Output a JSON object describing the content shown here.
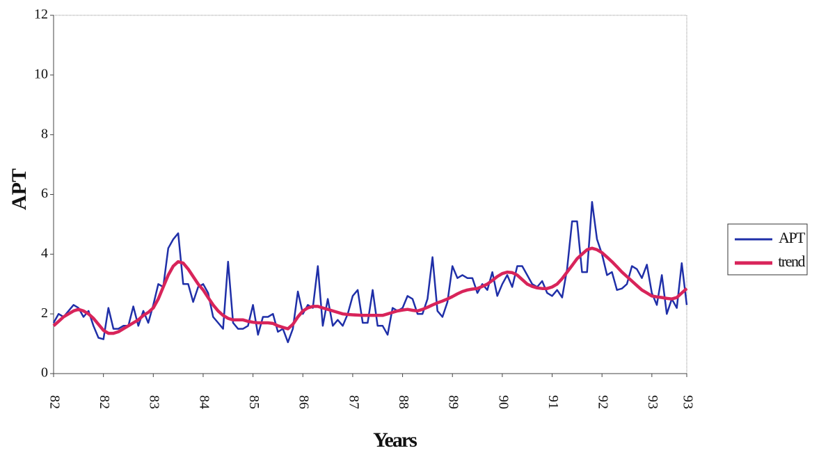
{
  "chart_data": {
    "type": "line",
    "x_label": "Years",
    "y_label": "APT",
    "categories": [
      "82",
      null,
      null,
      null,
      null,
      null,
      null,
      null,
      null,
      null,
      "82",
      null,
      null,
      null,
      null,
      null,
      null,
      null,
      null,
      null,
      "83",
      null,
      null,
      null,
      null,
      null,
      null,
      null,
      null,
      null,
      "84",
      null,
      null,
      null,
      null,
      null,
      null,
      null,
      null,
      null,
      "85",
      null,
      null,
      null,
      null,
      null,
      null,
      null,
      null,
      null,
      "86",
      null,
      null,
      null,
      null,
      null,
      null,
      null,
      null,
      null,
      "87",
      null,
      null,
      null,
      null,
      null,
      null,
      null,
      null,
      null,
      "88",
      null,
      null,
      null,
      null,
      null,
      null,
      null,
      null,
      null,
      "89",
      null,
      null,
      null,
      null,
      null,
      null,
      null,
      null,
      null,
      "90",
      null,
      null,
      null,
      null,
      null,
      null,
      null,
      null,
      null,
      "91",
      null,
      null,
      null,
      null,
      null,
      null,
      null,
      null,
      null,
      "92",
      null,
      null,
      null,
      null,
      null,
      null,
      null,
      null,
      null,
      "93",
      null,
      null,
      null,
      null,
      null,
      null,
      "93"
    ],
    "series": [
      {
        "name": "APT",
        "color": "#1f2fa8",
        "values": [
          1.7,
          2.0,
          1.9,
          2.1,
          2.3,
          2.2,
          1.9,
          2.1,
          1.6,
          1.2,
          1.15,
          2.2,
          1.5,
          1.5,
          1.6,
          1.6,
          2.25,
          1.6,
          2.1,
          1.7,
          2.3,
          3.0,
          2.9,
          4.2,
          4.5,
          4.7,
          3.0,
          3.0,
          2.4,
          2.9,
          3.0,
          2.7,
          1.9,
          1.7,
          1.5,
          3.75,
          1.7,
          1.5,
          1.5,
          1.6,
          2.3,
          1.3,
          1.9,
          1.9,
          2.0,
          1.4,
          1.5,
          1.05,
          1.5,
          2.75,
          2.0,
          2.3,
          2.2,
          3.6,
          1.6,
          2.5,
          1.6,
          1.8,
          1.6,
          2.0,
          2.6,
          2.8,
          1.7,
          1.7,
          2.8,
          1.6,
          1.6,
          1.3,
          2.2,
          2.1,
          2.2,
          2.6,
          2.5,
          2.0,
          2.0,
          2.5,
          3.9,
          2.1,
          1.9,
          2.4,
          3.6,
          3.2,
          3.3,
          3.2,
          3.2,
          2.7,
          3.0,
          2.8,
          3.4,
          2.6,
          3.0,
          3.3,
          2.9,
          3.6,
          3.6,
          3.3,
          3.0,
          2.9,
          3.1,
          2.7,
          2.6,
          2.8,
          2.55,
          3.5,
          5.1,
          5.1,
          3.4,
          3.4,
          5.75,
          4.5,
          4.0,
          3.3,
          3.4,
          2.8,
          2.85,
          3.0,
          3.6,
          3.5,
          3.2,
          3.65,
          2.7,
          2.3,
          3.3,
          2.0,
          2.5,
          2.2,
          3.7,
          2.3
        ]
      },
      {
        "name": "trend",
        "color": "#d8245a",
        "values": [
          1.6,
          1.75,
          1.9,
          2.0,
          2.1,
          2.15,
          2.1,
          2.0,
          1.85,
          1.65,
          1.45,
          1.35,
          1.35,
          1.4,
          1.5,
          1.6,
          1.7,
          1.8,
          1.95,
          2.05,
          2.2,
          2.5,
          2.9,
          3.3,
          3.6,
          3.75,
          3.7,
          3.5,
          3.25,
          3.0,
          2.8,
          2.55,
          2.3,
          2.1,
          1.95,
          1.85,
          1.8,
          1.8,
          1.8,
          1.75,
          1.72,
          1.7,
          1.7,
          1.7,
          1.68,
          1.6,
          1.55,
          1.5,
          1.65,
          1.9,
          2.1,
          2.2,
          2.25,
          2.25,
          2.2,
          2.15,
          2.1,
          2.05,
          2.0,
          1.98,
          1.97,
          1.96,
          1.95,
          1.95,
          1.95,
          1.95,
          1.95,
          2.0,
          2.05,
          2.1,
          2.13,
          2.15,
          2.12,
          2.1,
          2.15,
          2.22,
          2.3,
          2.37,
          2.43,
          2.5,
          2.58,
          2.67,
          2.75,
          2.8,
          2.83,
          2.85,
          2.92,
          3.0,
          3.12,
          3.25,
          3.35,
          3.4,
          3.38,
          3.3,
          3.15,
          3.0,
          2.92,
          2.87,
          2.85,
          2.85,
          2.9,
          3.0,
          3.18,
          3.4,
          3.62,
          3.85,
          4.0,
          4.15,
          4.2,
          4.15,
          4.05,
          3.9,
          3.75,
          3.58,
          3.4,
          3.25,
          3.1,
          2.95,
          2.8,
          2.7,
          2.6,
          2.57,
          2.55,
          2.52,
          2.5,
          2.55,
          2.7,
          2.85
        ]
      }
    ],
    "ylim": [
      0,
      12
    ],
    "yticks": [
      0,
      2,
      4,
      6,
      8,
      10,
      12
    ],
    "legend": "right"
  }
}
